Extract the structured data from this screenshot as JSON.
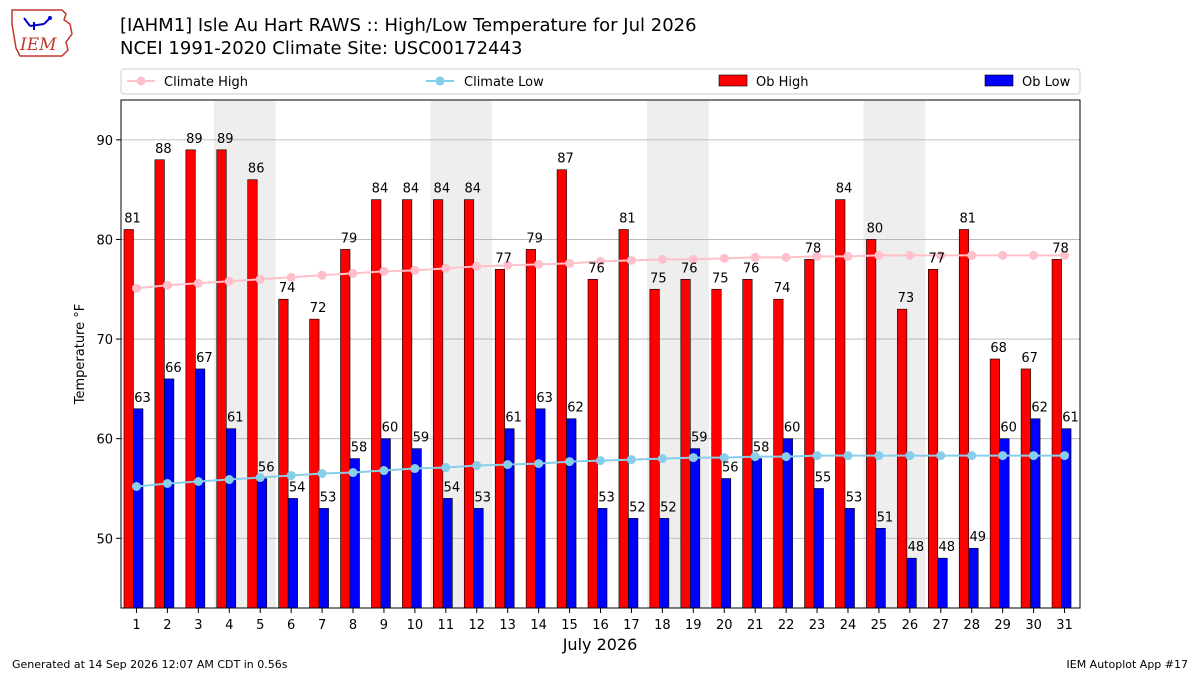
{
  "header": {
    "title_line1": "[IAHM1] Isle Au Hart RAWS :: High/Low Temperature for Jul 2026",
    "title_line2": "NCEI 1991-2020 Climate Site: USC00172443",
    "logo_text": "IEM"
  },
  "footer": {
    "left": "Generated at 14 Sep 2026 12:07 AM CDT in 0.56s",
    "right": "IEM Autoplot App #17"
  },
  "colors": {
    "ob_high": "#ff0000",
    "ob_low": "#0000ff",
    "climate_high": "#ffc0cb",
    "climate_low": "#87ceeb",
    "weekend_shade": "#eeeeee",
    "grid": "#b0b0b0"
  },
  "chart_data": {
    "type": "bar",
    "title": "[IAHM1] Isle Au Hart RAWS :: High/Low Temperature for Jul 2026",
    "subtitle": "NCEI 1991-2020 Climate Site: USC00172443",
    "xlabel": "July 2026",
    "ylabel": "Temperature °F",
    "ylim": [
      43,
      94
    ],
    "yticks": [
      50,
      60,
      70,
      80,
      90
    ],
    "grid": "horizontal",
    "legend_position": "top",
    "x": [
      1,
      2,
      3,
      4,
      5,
      6,
      7,
      8,
      9,
      10,
      11,
      12,
      13,
      14,
      15,
      16,
      17,
      18,
      19,
      20,
      21,
      22,
      23,
      24,
      25,
      26,
      27,
      28,
      29,
      30,
      31
    ],
    "shaded_day_ranges": [
      [
        4,
        5
      ],
      [
        11,
        12
      ],
      [
        18,
        19
      ],
      [
        25,
        26
      ]
    ],
    "series": [
      {
        "name": "Climate High",
        "kind": "line",
        "values": [
          75.1,
          75.4,
          75.6,
          75.8,
          76.0,
          76.2,
          76.4,
          76.6,
          76.8,
          76.9,
          77.1,
          77.3,
          77.4,
          77.5,
          77.6,
          77.8,
          77.9,
          78.0,
          78.0,
          78.1,
          78.2,
          78.2,
          78.3,
          78.3,
          78.4,
          78.4,
          78.4,
          78.4,
          78.4,
          78.4,
          78.4
        ]
      },
      {
        "name": "Climate Low",
        "kind": "line",
        "values": [
          55.2,
          55.5,
          55.7,
          55.9,
          56.1,
          56.3,
          56.5,
          56.6,
          56.8,
          57.0,
          57.1,
          57.3,
          57.4,
          57.5,
          57.7,
          57.8,
          57.9,
          58.0,
          58.1,
          58.1,
          58.2,
          58.2,
          58.3,
          58.3,
          58.3,
          58.3,
          58.3,
          58.3,
          58.3,
          58.3,
          58.3
        ]
      },
      {
        "name": "Ob High",
        "kind": "bar",
        "values": [
          81,
          88,
          89,
          89,
          86,
          74,
          72,
          79,
          84,
          84,
          84,
          84,
          77,
          79,
          87,
          76,
          81,
          75,
          76,
          75,
          76,
          74,
          78,
          84,
          80,
          73,
          77,
          81,
          68,
          67,
          78
        ]
      },
      {
        "name": "Ob Low",
        "kind": "bar",
        "values": [
          63,
          66,
          67,
          61,
          56,
          54,
          53,
          58,
          60,
          59,
          54,
          53,
          61,
          63,
          62,
          53,
          52,
          52,
          59,
          56,
          58,
          60,
          55,
          53,
          51,
          48,
          48,
          49,
          60,
          62,
          61
        ]
      }
    ]
  }
}
